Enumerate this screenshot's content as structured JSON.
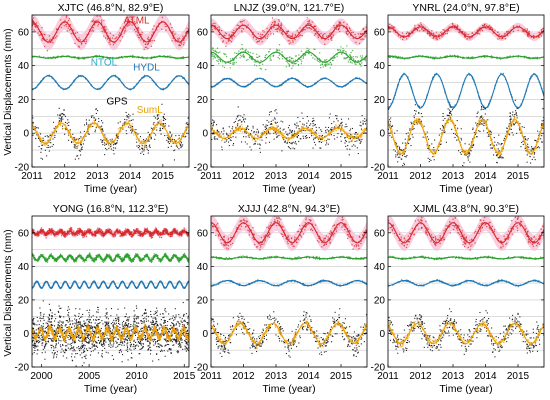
{
  "figure": {
    "ylabel": "Vertical Displacements (mm)",
    "colors": {
      "ATML": "#d62728",
      "ATML_fill": "#f7b6d2",
      "NTOL": "#2ca02c",
      "HYDL": "#1f77b4",
      "GPS": "#222222",
      "SumL": "#f0a000",
      "label_ATML": "#d62728",
      "label_NTOL": "#2ca9c8",
      "label_HYDL": "#1f77b4",
      "label_GPS": "#000000",
      "label_SumL": "#e8a000"
    }
  },
  "chart_data": [
    {
      "type": "line",
      "station": "XJTC",
      "title": "XJTC (46.8°N, 82.9°E)",
      "xlabel": "Time (year)",
      "xlim": [
        2011,
        2015.8
      ],
      "ylim": [
        -20,
        70
      ],
      "xticks": [
        2011,
        2012,
        2013,
        2014,
        2015
      ],
      "yticks": [
        -20,
        0,
        20,
        40,
        60
      ],
      "grid": true,
      "series": [
        {
          "name": "ATML",
          "offset": 60,
          "amplitude": 6,
          "period": 1.0,
          "phase": 0.0,
          "noise": 3
        },
        {
          "name": "NTOL",
          "offset": 45,
          "amplitude": 0.5,
          "period": 1.0,
          "phase": 0.0,
          "noise": 0.4
        },
        {
          "name": "HYDL",
          "offset": 30,
          "amplitude": 4,
          "period": 1.0,
          "phase": 0.5,
          "noise": 0.3
        },
        {
          "name": "GPS",
          "offset": 0,
          "amplitude": 8,
          "period": 1.0,
          "phase": 0.1,
          "noise": 5
        },
        {
          "name": "SumL",
          "offset": 0,
          "amplitude": 6,
          "period": 1.0,
          "phase": 0.1,
          "noise": 1.5
        }
      ],
      "labels": [
        {
          "text": "ATML",
          "color_key": "label_ATML",
          "x": 2014.2,
          "y": 65
        },
        {
          "text": "NTOL",
          "color_key": "label_NTOL",
          "x": 2013.2,
          "y": 40
        },
        {
          "text": "HYDL",
          "color_key": "label_HYDL",
          "x": 2014.5,
          "y": 37
        },
        {
          "text": "GPS",
          "color_key": "label_GPS",
          "x": 2013.6,
          "y": 17
        },
        {
          "text": "SumL",
          "color_key": "label_SumL",
          "x": 2014.6,
          "y": 12
        }
      ]
    },
    {
      "type": "line",
      "station": "LNJZ",
      "title": "LNJZ (39.0°N, 121.7°E)",
      "xlabel": "Time (year)",
      "xlim": [
        2011,
        2015.8
      ],
      "ylim": [
        -20,
        70
      ],
      "xticks": [
        2011,
        2012,
        2013,
        2014,
        2015
      ],
      "yticks": [
        -20,
        0,
        20,
        40,
        60
      ],
      "grid": true,
      "series": [
        {
          "name": "ATML",
          "offset": 60,
          "amplitude": 4,
          "period": 1.0,
          "phase": 0.0,
          "noise": 2.5
        },
        {
          "name": "NTOL",
          "offset": 45,
          "amplitude": 3,
          "period": 1.0,
          "phase": 0.0,
          "noise": 3
        },
        {
          "name": "HYDL",
          "offset": 30,
          "amplitude": 2.5,
          "period": 1.0,
          "phase": 0.5,
          "noise": 0.3
        },
        {
          "name": "GPS",
          "offset": 0,
          "amplitude": 4,
          "period": 1.0,
          "phase": 0.1,
          "noise": 6
        },
        {
          "name": "SumL",
          "offset": 0,
          "amplitude": 3,
          "period": 1.0,
          "phase": 0.1,
          "noise": 1.5
        }
      ],
      "labels": []
    },
    {
      "type": "line",
      "station": "YNRL",
      "title": "YNRL (24.0°N, 97.8°E)",
      "xlabel": "Time (year)",
      "xlim": [
        2011,
        2015.8
      ],
      "ylim": [
        -20,
        70
      ],
      "xticks": [
        2011,
        2012,
        2013,
        2014,
        2015
      ],
      "yticks": [
        -20,
        0,
        20,
        40,
        60
      ],
      "grid": true,
      "series": [
        {
          "name": "ATML",
          "offset": 60,
          "amplitude": 3,
          "period": 1.0,
          "phase": 0.0,
          "noise": 1.5
        },
        {
          "name": "NTOL",
          "offset": 45,
          "amplitude": 0.6,
          "period": 1.0,
          "phase": 0.0,
          "noise": 0.4
        },
        {
          "name": "HYDL",
          "offset": 25,
          "amplitude": 10,
          "period": 1.0,
          "phase": 0.5,
          "noise": 0.5
        },
        {
          "name": "GPS",
          "offset": -2,
          "amplitude": 11,
          "period": 1.0,
          "phase": 0.1,
          "noise": 6
        },
        {
          "name": "SumL",
          "offset": -2,
          "amplitude": 10,
          "period": 1.0,
          "phase": 0.1,
          "noise": 1.5
        }
      ],
      "labels": []
    },
    {
      "type": "line",
      "station": "YONG",
      "title": "YONG (16.8°N, 112.3°E)",
      "xlabel": "Time (year)",
      "xlim": [
        1999,
        2015.5
      ],
      "ylim": [
        -20,
        70
      ],
      "xticks": [
        2000,
        2005,
        2010,
        2015
      ],
      "yticks": [
        -20,
        0,
        20,
        40,
        60
      ],
      "grid": true,
      "series": [
        {
          "name": "ATML",
          "offset": 60,
          "amplitude": 1,
          "period": 1.0,
          "phase": 0.0,
          "noise": 1.2
        },
        {
          "name": "NTOL",
          "offset": 45,
          "amplitude": 1.5,
          "period": 1.0,
          "phase": 0.0,
          "noise": 0.8
        },
        {
          "name": "HYDL",
          "offset": 29,
          "amplitude": 2,
          "period": 1.0,
          "phase": 0.5,
          "noise": 0.2
        },
        {
          "name": "GPS",
          "offset": 0,
          "amplitude": 3,
          "period": 1.0,
          "phase": 0.1,
          "noise": 9
        },
        {
          "name": "SumL",
          "offset": 0,
          "amplitude": 3,
          "period": 1.0,
          "phase": 0.1,
          "noise": 1.5
        }
      ],
      "labels": []
    },
    {
      "type": "line",
      "station": "XJJJ",
      "title": "XJJJ (42.8°N, 94.3°E)",
      "xlabel": "Time (year)",
      "xlim": [
        2011,
        2015.8
      ],
      "ylim": [
        -20,
        70
      ],
      "xticks": [
        2011,
        2012,
        2013,
        2014,
        2015
      ],
      "yticks": [
        -20,
        0,
        20,
        40,
        60
      ],
      "grid": true,
      "series": [
        {
          "name": "ATML",
          "offset": 60,
          "amplitude": 6,
          "period": 1.0,
          "phase": 0.0,
          "noise": 3
        },
        {
          "name": "NTOL",
          "offset": 45,
          "amplitude": 0.5,
          "period": 1.0,
          "phase": 0.0,
          "noise": 0.4
        },
        {
          "name": "HYDL",
          "offset": 30,
          "amplitude": 1.5,
          "period": 1.0,
          "phase": 0.5,
          "noise": 0.3
        },
        {
          "name": "GPS",
          "offset": 0,
          "amplitude": 7,
          "period": 1.0,
          "phase": 0.1,
          "noise": 5
        },
        {
          "name": "SumL",
          "offset": 0,
          "amplitude": 6,
          "period": 1.0,
          "phase": 0.1,
          "noise": 1.5
        }
      ],
      "labels": []
    },
    {
      "type": "line",
      "station": "XJML",
      "title": "XJML (43.8°N, 90.3°E)",
      "xlabel": "Time (year)",
      "xlim": [
        2011,
        2015.8
      ],
      "ylim": [
        -20,
        70
      ],
      "xticks": [
        2011,
        2012,
        2013,
        2014,
        2015
      ],
      "yticks": [
        -20,
        0,
        20,
        40,
        60
      ],
      "grid": true,
      "series": [
        {
          "name": "ATML",
          "offset": 60,
          "amplitude": 6,
          "period": 1.0,
          "phase": 0.0,
          "noise": 3
        },
        {
          "name": "NTOL",
          "offset": 45,
          "amplitude": 0.5,
          "period": 1.0,
          "phase": 0.0,
          "noise": 0.4
        },
        {
          "name": "HYDL",
          "offset": 30,
          "amplitude": 1.5,
          "period": 1.0,
          "phase": 0.5,
          "noise": 0.3
        },
        {
          "name": "GPS",
          "offset": 0,
          "amplitude": 7,
          "period": 1.0,
          "phase": 0.1,
          "noise": 5
        },
        {
          "name": "SumL",
          "offset": 0,
          "amplitude": 6,
          "period": 1.0,
          "phase": 0.1,
          "noise": 1.5
        }
      ],
      "labels": []
    }
  ]
}
